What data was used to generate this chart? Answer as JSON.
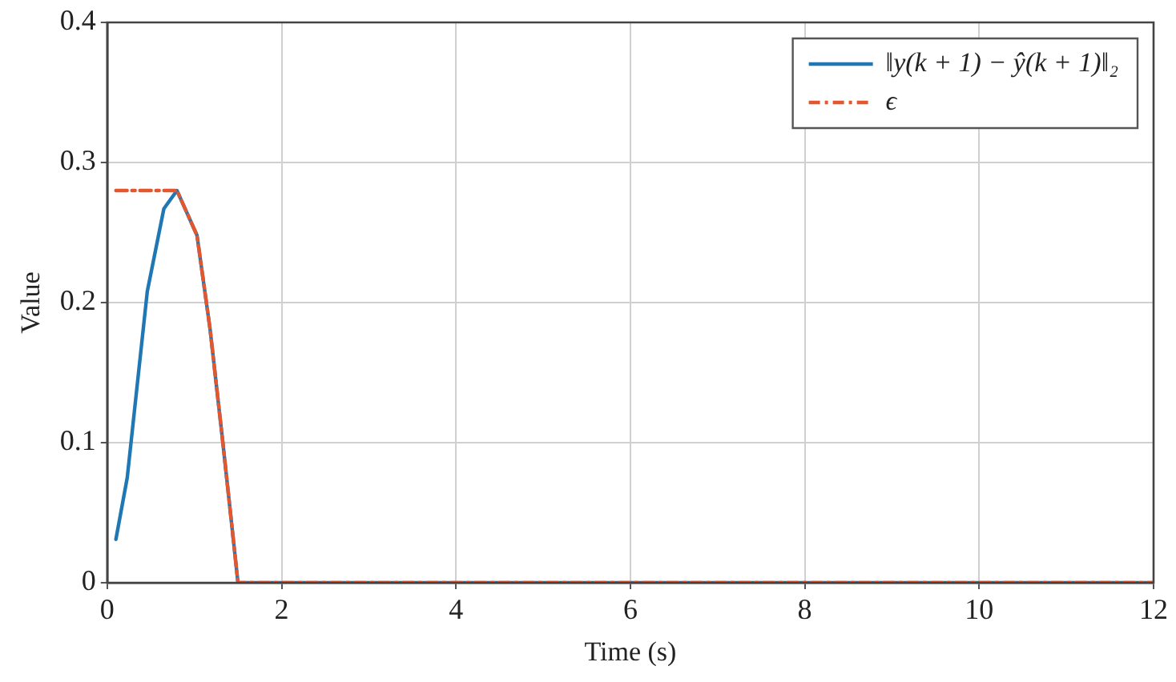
{
  "chart_data": {
    "type": "line",
    "xlabel": "Time (s)",
    "ylabel": "Value",
    "xlim": [
      0,
      12
    ],
    "ylim": [
      0,
      0.4
    ],
    "xticks": [
      0,
      2,
      4,
      6,
      8,
      10,
      12
    ],
    "yticks": [
      0,
      0.1,
      0.2,
      0.3,
      0.4
    ],
    "grid": true,
    "legend": "top right",
    "marker": "none",
    "series": [
      {
        "name": "‖y(k + 1) − ŷ(k + 1)‖₂",
        "color": "#1f77b4",
        "line_style": "solid",
        "x": [
          0.1,
          0.23,
          0.46,
          0.65,
          0.8,
          1.03,
          1.18,
          1.33,
          1.5,
          12
        ],
        "values": [
          0.031,
          0.075,
          0.208,
          0.267,
          0.28,
          0.248,
          0.181,
          0.098,
          0,
          0
        ]
      },
      {
        "name": "ϵ",
        "color": "#e4572e",
        "line_style": "dashed",
        "x": [
          0.1,
          0.8,
          1.03,
          1.18,
          1.33,
          1.5,
          12
        ],
        "values": [
          0.28,
          0.28,
          0.248,
          0.181,
          0.098,
          0,
          0
        ]
      }
    ]
  }
}
